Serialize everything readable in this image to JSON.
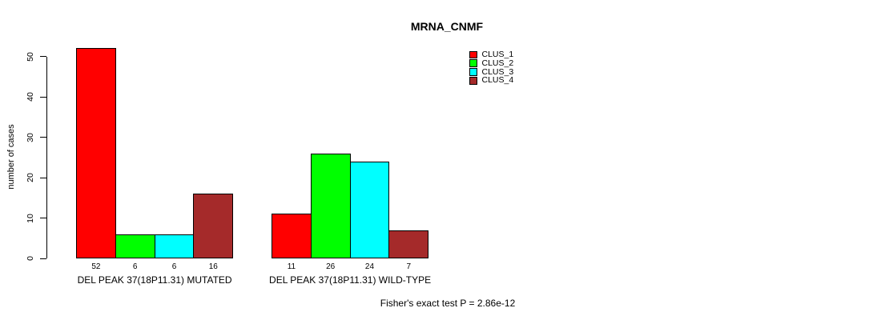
{
  "chart_data": {
    "type": "bar",
    "title": "MRNA_CNMF",
    "ylabel": "number of cases",
    "xlabel": "",
    "ylim": [
      0,
      50
    ],
    "yticks": [
      0,
      10,
      20,
      30,
      40,
      50
    ],
    "grid": false,
    "legend_position": "top-right",
    "categories": [
      "DEL PEAK 37(18P11.31) MUTATED",
      "DEL PEAK 37(18P11.31) WILD-TYPE"
    ],
    "series": [
      {
        "name": "CLUS_1",
        "color": "#FF0000",
        "values": [
          52,
          11
        ]
      },
      {
        "name": "CLUS_2",
        "color": "#00FF00",
        "values": [
          6,
          26
        ]
      },
      {
        "name": "CLUS_3",
        "color": "#00FFFF",
        "values": [
          6,
          24
        ]
      },
      {
        "name": "CLUS_4",
        "color": "#A52A2A",
        "values": [
          16,
          7
        ]
      }
    ],
    "bar_value_labels": [
      [
        52,
        6,
        6,
        16
      ],
      [
        11,
        26,
        24,
        7
      ]
    ],
    "annotation": "Fisher's exact test P = 2.86e-12"
  }
}
